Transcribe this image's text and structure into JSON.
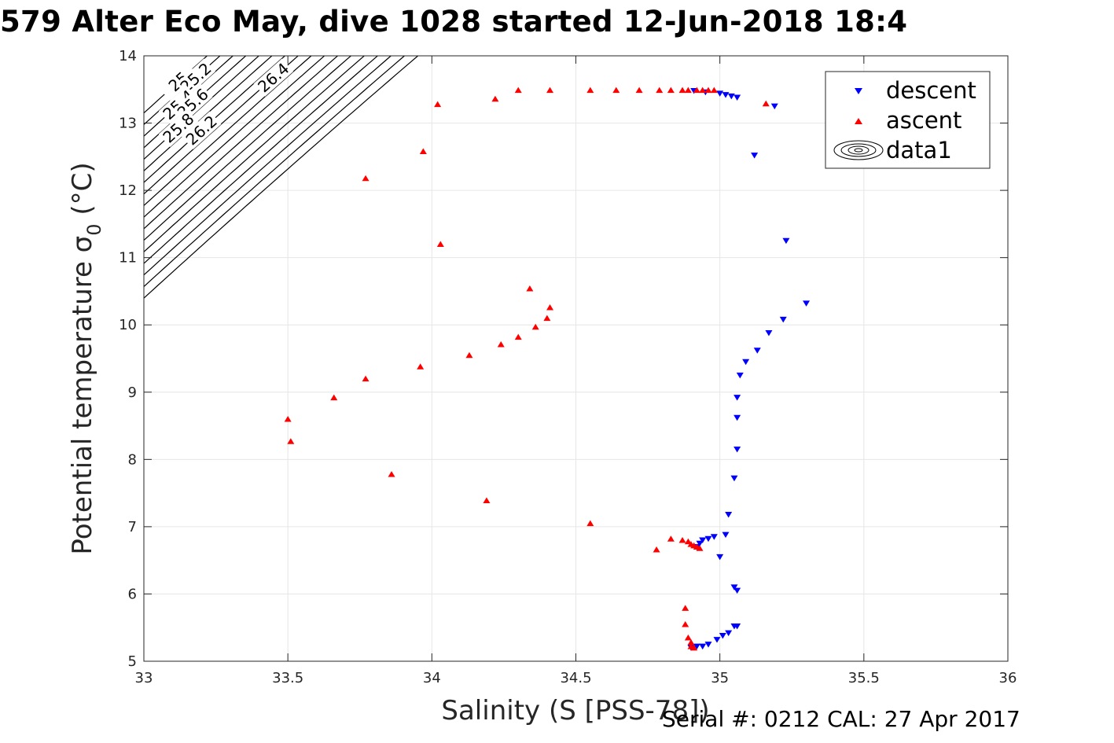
{
  "chart_data": {
    "type": "scatter",
    "title": "579 Alter Eco May, dive 1028 started 12-Jun-2018 18:4",
    "xlabel": "Salinity (S [PSS-78])",
    "ylabel": "Potential temperature σ",
    "ylabel_subscript": "0",
    "ylabel_unit": " (°C)",
    "xlim": [
      33,
      36
    ],
    "ylim": [
      5,
      14
    ],
    "xticks": [
      "33",
      "33.5",
      "34",
      "34.5",
      "35",
      "35.5",
      "36"
    ],
    "yticks": [
      "5",
      "6",
      "7",
      "8",
      "9",
      "10",
      "11",
      "12",
      "13",
      "14"
    ],
    "grid": true,
    "legend": [
      "descent",
      "ascent",
      "data1"
    ],
    "legend_position": "top-right",
    "colors": {
      "descent": "#0000ff",
      "ascent": "#ff0000",
      "contours": "#000000",
      "grid": "#e6e6e6"
    },
    "contour_levels": [
      "25",
      "25.2",
      "25.4",
      "25.6",
      "25.8",
      "26",
      "26.2",
      "26.4",
      "26.6",
      "26.8",
      "27",
      "27.2",
      "27.4",
      "27.6",
      "27.8",
      "28",
      "28.2"
    ],
    "series": [
      {
        "name": "descent",
        "marker": "down-triangle",
        "x": [
          34.91,
          34.95,
          35.0,
          35.02,
          35.04,
          35.06,
          35.19,
          35.12,
          35.23,
          35.3,
          35.22,
          35.17,
          35.13,
          35.09,
          35.07,
          35.06,
          35.06,
          35.06,
          35.05,
          35.03,
          35.02,
          34.98,
          34.96,
          34.94,
          34.93,
          34.92,
          35.0,
          35.05,
          35.06,
          35.05,
          35.06,
          35.03,
          35.01,
          34.99,
          34.96,
          34.94,
          34.92,
          34.9
        ],
        "y": [
          13.48,
          13.46,
          13.44,
          13.42,
          13.4,
          13.38,
          13.25,
          12.52,
          11.25,
          10.32,
          10.08,
          9.88,
          9.62,
          9.45,
          9.25,
          8.92,
          8.62,
          8.15,
          7.72,
          7.18,
          6.88,
          6.85,
          6.82,
          6.8,
          6.75,
          6.7,
          6.55,
          6.1,
          6.05,
          5.52,
          5.52,
          5.42,
          5.38,
          5.32,
          5.25,
          5.22,
          5.22,
          5.2
        ]
      },
      {
        "name": "ascent",
        "marker": "up-triangle",
        "x": [
          34.02,
          34.22,
          34.3,
          34.41,
          34.55,
          34.64,
          34.72,
          34.79,
          34.83,
          34.87,
          34.89,
          34.92,
          34.94,
          34.96,
          34.98,
          35.16,
          33.97,
          33.77,
          34.03,
          34.34,
          34.41,
          34.4,
          34.36,
          34.3,
          34.24,
          34.13,
          33.96,
          33.77,
          33.66,
          33.5,
          33.51,
          33.86,
          34.19,
          34.55,
          34.78,
          34.83,
          34.87,
          34.89,
          34.9,
          34.92,
          34.93,
          34.91,
          34.88,
          34.88,
          34.89,
          34.9,
          34.9,
          34.91
        ],
        "y": [
          13.28,
          13.36,
          13.49,
          13.49,
          13.49,
          13.49,
          13.49,
          13.49,
          13.49,
          13.49,
          13.49,
          13.49,
          13.49,
          13.49,
          13.49,
          13.29,
          12.58,
          12.18,
          11.2,
          10.54,
          10.26,
          10.1,
          9.97,
          9.82,
          9.71,
          9.55,
          9.38,
          9.2,
          8.92,
          8.6,
          8.27,
          7.78,
          7.39,
          7.05,
          6.66,
          6.82,
          6.8,
          6.78,
          6.74,
          6.7,
          6.68,
          6.72,
          5.79,
          5.55,
          5.35,
          5.28,
          5.22,
          5.2
        ]
      }
    ]
  },
  "footer": {
    "serial": "Serial #: 0212  CAL: 27 Apr 2017"
  }
}
